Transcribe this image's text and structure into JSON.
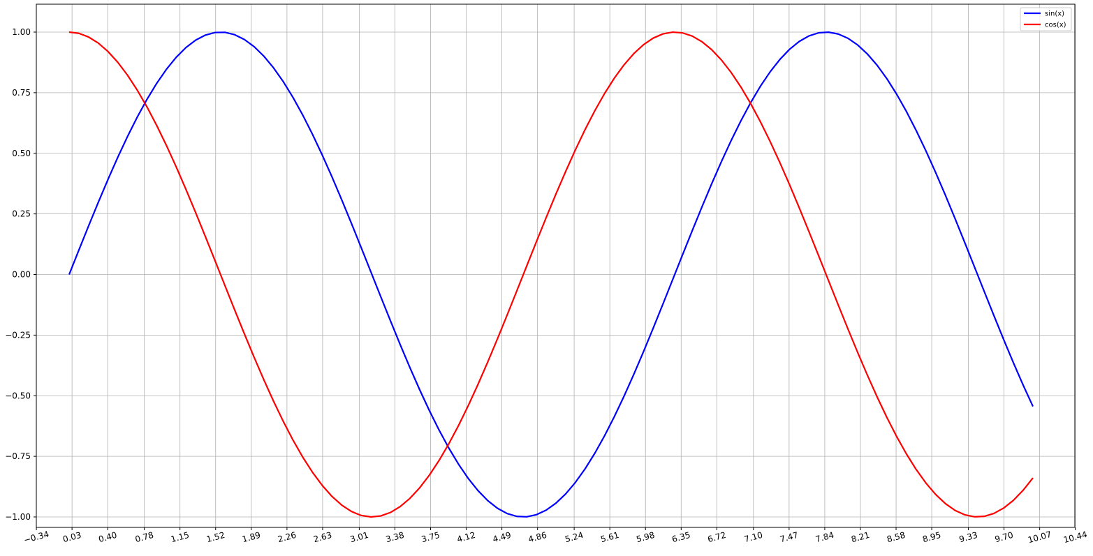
{
  "chart_data": {
    "type": "line",
    "title": "",
    "xlabel": "",
    "ylabel": "",
    "xlim": [
      -0.34,
      10.44
    ],
    "ylim": [
      -1.05,
      1.1
    ],
    "grid": true,
    "legend_position": "top-right",
    "x_ticks": [
      "-0.34",
      "0.03",
      "0.40",
      "0.78",
      "1.15",
      "1.52",
      "1.89",
      "2.26",
      "2.63",
      "3.01",
      "3.38",
      "3.75",
      "4.12",
      "4.49",
      "4.86",
      "5.24",
      "5.61",
      "5.98",
      "6.35",
      "6.72",
      "7.10",
      "7.47",
      "7.84",
      "8.21",
      "8.58",
      "8.95",
      "9.33",
      "9.70",
      "10.07",
      "10.44"
    ],
    "y_ticks": [
      "1.00",
      "0.75",
      "0.50",
      "0.25",
      "0.00",
      "-0.25",
      "-0.50",
      "-0.75",
      "-1.00"
    ],
    "x": {
      "start": 0,
      "end": 10,
      "points": 100
    },
    "series": [
      {
        "name": "sin(x)",
        "function": "sin",
        "color": "#0000ff"
      },
      {
        "name": "cos(x)",
        "function": "cos",
        "color": "#ff0000"
      }
    ]
  }
}
